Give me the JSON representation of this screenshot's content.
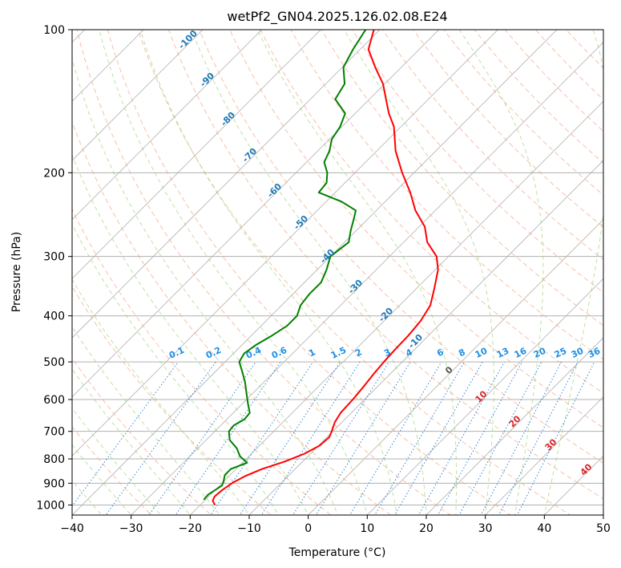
{
  "chart_data": {
    "type": "line",
    "title": "wetPf2_GN04.2025.126.02.08.E24",
    "xlabel": "Temperature (°C)",
    "ylabel": "Pressure (hPa)",
    "xlim": [
      -40,
      50
    ],
    "ylim": [
      1050,
      100
    ],
    "y_scale": "log",
    "grid": true,
    "x_ticks": [
      -40,
      -30,
      -20,
      -10,
      0,
      10,
      20,
      30,
      40,
      50
    ],
    "y_ticks": [
      100,
      200,
      300,
      400,
      500,
      600,
      700,
      800,
      900,
      1000
    ],
    "series": [
      {
        "color": "#ff0000",
        "points": [
          [
            1000,
            -17.5
          ],
          [
            980,
            -18.6
          ],
          [
            960,
            -19.0
          ],
          [
            930,
            -18.8
          ],
          [
            900,
            -18.3
          ],
          [
            870,
            -17.3
          ],
          [
            840,
            -15.6
          ],
          [
            810,
            -13.0
          ],
          [
            780,
            -11.0
          ],
          [
            750,
            -9.8
          ],
          [
            720,
            -9.6
          ],
          [
            700,
            -10.2
          ],
          [
            670,
            -11.2
          ],
          [
            640,
            -11.8
          ],
          [
            600,
            -12.0
          ],
          [
            560,
            -12.4
          ],
          [
            530,
            -12.8
          ],
          [
            500,
            -13.1
          ],
          [
            470,
            -13.3
          ],
          [
            440,
            -13.4
          ],
          [
            410,
            -13.8
          ],
          [
            380,
            -14.8
          ],
          [
            350,
            -17.0
          ],
          [
            320,
            -19.5
          ],
          [
            300,
            -22.0
          ],
          [
            280,
            -26.0
          ],
          [
            260,
            -29.0
          ],
          [
            240,
            -33.4
          ],
          [
            220,
            -37.3
          ],
          [
            200,
            -42.0
          ],
          [
            180,
            -46.8
          ],
          [
            160,
            -51.2
          ],
          [
            150,
            -54.3
          ],
          [
            140,
            -57.2
          ],
          [
            130,
            -60.3
          ],
          [
            120,
            -64.4
          ],
          [
            110,
            -68.6
          ],
          [
            100,
            -71.0
          ]
        ]
      },
      {
        "color": "#008000",
        "points": [
          [
            975,
            -20.3
          ],
          [
            950,
            -20.4
          ],
          [
            930,
            -20.0
          ],
          [
            910,
            -19.6
          ],
          [
            890,
            -20.1
          ],
          [
            865,
            -20.9
          ],
          [
            840,
            -20.9
          ],
          [
            815,
            -19.2
          ],
          [
            790,
            -21.5
          ],
          [
            760,
            -23.4
          ],
          [
            730,
            -26.0
          ],
          [
            700,
            -27.6
          ],
          [
            680,
            -27.8
          ],
          [
            660,
            -27.0
          ],
          [
            640,
            -27.2
          ],
          [
            610,
            -29.2
          ],
          [
            580,
            -31.2
          ],
          [
            550,
            -33.3
          ],
          [
            520,
            -35.8
          ],
          [
            500,
            -37.6
          ],
          [
            480,
            -38.2
          ],
          [
            460,
            -37.6
          ],
          [
            440,
            -36.5
          ],
          [
            420,
            -35.6
          ],
          [
            400,
            -35.6
          ],
          [
            380,
            -36.8
          ],
          [
            360,
            -37.2
          ],
          [
            340,
            -37.2
          ],
          [
            320,
            -38.4
          ],
          [
            300,
            -40.0
          ],
          [
            280,
            -39.3
          ],
          [
            265,
            -40.9
          ],
          [
            250,
            -42.4
          ],
          [
            240,
            -43.5
          ],
          [
            230,
            -47.4
          ],
          [
            220,
            -52.8
          ],
          [
            210,
            -53.1
          ],
          [
            200,
            -54.7
          ],
          [
            190,
            -57.0
          ],
          [
            180,
            -58.0
          ],
          [
            170,
            -59.6
          ],
          [
            160,
            -60.3
          ],
          [
            150,
            -61.7
          ],
          [
            140,
            -65.8
          ],
          [
            130,
            -66.8
          ],
          [
            120,
            -69.8
          ],
          [
            110,
            -71.2
          ],
          [
            100,
            -72.4
          ]
        ]
      }
    ],
    "dry_adiabat_labels": [
      -100,
      -90,
      -80,
      -70,
      -60,
      -50,
      -40,
      -30,
      -20,
      -10,
      0,
      10,
      20,
      30,
      40
    ],
    "mixing_ratio_labels": [
      "0.1",
      "0.2",
      "0.4",
      "0.6",
      "1",
      "1.5",
      "2",
      "3",
      "4",
      "6",
      "8",
      "10",
      "13",
      "16",
      "20",
      "25",
      "30",
      "36"
    ]
  }
}
